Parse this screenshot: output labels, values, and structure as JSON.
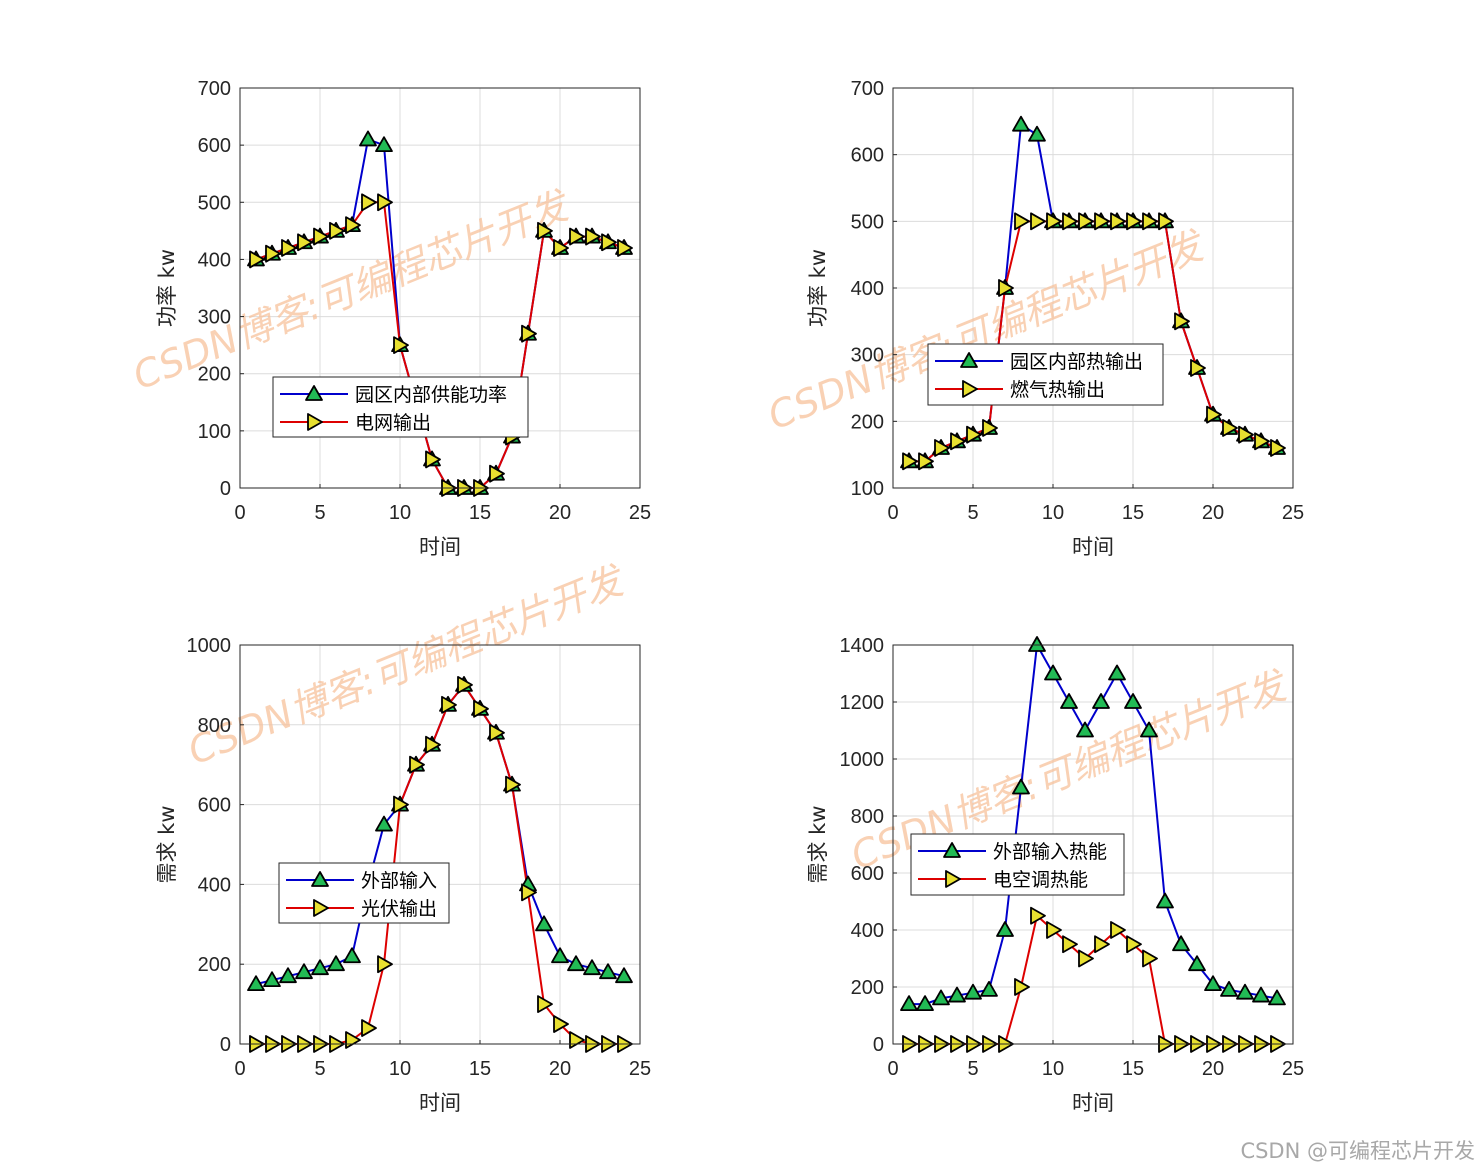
{
  "colors": {
    "blue": "#0000cc",
    "red": "#dd0000",
    "tri_fill": "#22bb55",
    "right_fill": "#e8e030",
    "grid": "#dcdcdc",
    "watermark": "#f7c29c"
  },
  "watermark_text": "CSDN博客:可编程芯片开发",
  "footer_watermark": "CSDN @可编程芯片开发",
  "chart_data": [
    {
      "type": "line",
      "xlabel": "时间",
      "ylabel": "功率 kw",
      "xlim": [
        0,
        25
      ],
      "ylim": [
        0,
        700
      ],
      "xticks": [
        0,
        5,
        10,
        15,
        20,
        25
      ],
      "yticks": [
        0,
        100,
        200,
        300,
        400,
        500,
        600,
        700
      ],
      "grid": true,
      "legend": "center-left",
      "x": [
        1,
        2,
        3,
        4,
        5,
        6,
        7,
        8,
        9,
        10,
        11,
        12,
        13,
        14,
        15,
        16,
        17,
        18,
        19,
        20,
        21,
        22,
        23,
        24
      ],
      "series": [
        {
          "name": "园区内部供能功率",
          "color": "blue",
          "marker": "triangle-up",
          "values": [
            400,
            410,
            420,
            430,
            440,
            450,
            460,
            610,
            600,
            250,
            150,
            50,
            0,
            0,
            0,
            25,
            90,
            270,
            450,
            420,
            440,
            440,
            430,
            420
          ]
        },
        {
          "name": "电网输出",
          "color": "red",
          "marker": "triangle-right",
          "values": [
            400,
            410,
            420,
            430,
            440,
            450,
            460,
            500,
            500,
            250,
            150,
            50,
            0,
            0,
            0,
            25,
            90,
            270,
            450,
            420,
            440,
            440,
            430,
            420
          ]
        }
      ]
    },
    {
      "type": "line",
      "xlabel": "时间",
      "ylabel": "功率 kw",
      "xlim": [
        0,
        25
      ],
      "ylim": [
        100,
        700
      ],
      "xticks": [
        0,
        5,
        10,
        15,
        20,
        25
      ],
      "yticks": [
        100,
        200,
        300,
        400,
        500,
        600,
        700
      ],
      "grid": true,
      "legend": "center-left",
      "x": [
        1,
        2,
        3,
        4,
        5,
        6,
        7,
        8,
        9,
        10,
        11,
        12,
        13,
        14,
        15,
        16,
        17,
        18,
        19,
        20,
        21,
        22,
        23,
        24
      ],
      "series": [
        {
          "name": "园区内部热输出",
          "color": "blue",
          "marker": "triangle-up",
          "values": [
            140,
            140,
            160,
            170,
            180,
            190,
            400,
            645,
            630,
            500,
            500,
            500,
            500,
            500,
            500,
            500,
            500,
            350,
            280,
            210,
            190,
            180,
            170,
            160
          ]
        },
        {
          "name": "燃气热输出",
          "color": "red",
          "marker": "triangle-right",
          "values": [
            140,
            140,
            160,
            170,
            180,
            190,
            400,
            500,
            500,
            500,
            500,
            500,
            500,
            500,
            500,
            500,
            500,
            350,
            280,
            210,
            190,
            180,
            170,
            160
          ]
        }
      ]
    },
    {
      "type": "line",
      "xlabel": "时间",
      "ylabel": "需求 kw",
      "xlim": [
        0,
        25
      ],
      "ylim": [
        0,
        1000
      ],
      "xticks": [
        0,
        5,
        10,
        15,
        20,
        25
      ],
      "yticks": [
        0,
        200,
        400,
        600,
        800,
        1000
      ],
      "grid": true,
      "legend": "center-left",
      "x": [
        1,
        2,
        3,
        4,
        5,
        6,
        7,
        8,
        9,
        10,
        11,
        12,
        13,
        14,
        15,
        16,
        17,
        18,
        19,
        20,
        21,
        22,
        23,
        24
      ],
      "series": [
        {
          "name": "外部输入",
          "color": "blue",
          "marker": "triangle-up",
          "values": [
            150,
            160,
            170,
            180,
            190,
            200,
            220,
            400,
            550,
            600,
            700,
            750,
            850,
            900,
            840,
            780,
            650,
            400,
            300,
            220,
            200,
            190,
            180,
            170
          ]
        },
        {
          "name": "光伏输出",
          "color": "red",
          "marker": "triangle-right",
          "values": [
            0,
            0,
            0,
            0,
            0,
            0,
            10,
            40,
            200,
            600,
            700,
            750,
            850,
            900,
            840,
            780,
            650,
            380,
            100,
            50,
            10,
            0,
            0,
            0
          ]
        }
      ]
    },
    {
      "type": "line",
      "xlabel": "时间",
      "ylabel": "需求 kw",
      "xlim": [
        0,
        25
      ],
      "ylim": [
        0,
        1400
      ],
      "xticks": [
        0,
        5,
        10,
        15,
        20,
        25
      ],
      "yticks": [
        0,
        200,
        400,
        600,
        800,
        1000,
        1200,
        1400
      ],
      "grid": true,
      "legend": "center-left",
      "x": [
        1,
        2,
        3,
        4,
        5,
        6,
        7,
        8,
        9,
        10,
        11,
        12,
        13,
        14,
        15,
        16,
        17,
        18,
        19,
        20,
        21,
        22,
        23,
        24
      ],
      "series": [
        {
          "name": "外部输入热能",
          "color": "blue",
          "marker": "triangle-up",
          "values": [
            140,
            140,
            160,
            170,
            180,
            190,
            400,
            900,
            1400,
            1300,
            1200,
            1100,
            1200,
            1300,
            1200,
            1100,
            500,
            350,
            280,
            210,
            190,
            180,
            170,
            160
          ]
        },
        {
          "name": "电空调热能",
          "color": "red",
          "marker": "triangle-right",
          "values": [
            0,
            0,
            0,
            0,
            0,
            0,
            0,
            200,
            450,
            400,
            350,
            300,
            350,
            400,
            350,
            300,
            0,
            0,
            0,
            0,
            0,
            0,
            0,
            0
          ]
        }
      ]
    }
  ]
}
